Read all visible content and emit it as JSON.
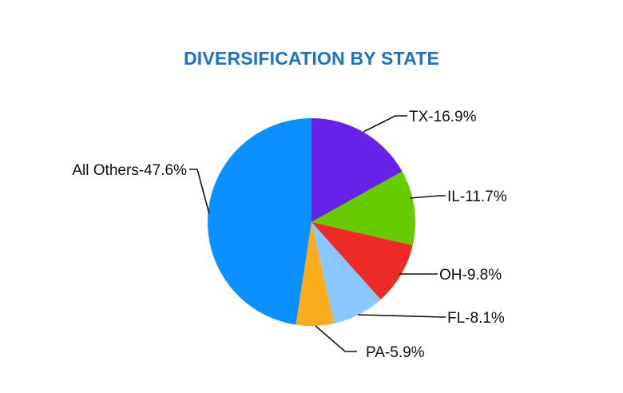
{
  "chart_data": {
    "type": "pie",
    "title": "DIVERSIFICATION BY STATE",
    "categories": [
      "TX",
      "IL",
      "OH",
      "FL",
      "PA",
      "All Others"
    ],
    "values": [
      16.9,
      11.7,
      9.8,
      8.1,
      5.9,
      47.6
    ],
    "labels": [
      "TX-16.9%",
      "IL-11.7%",
      "OH-9.8%",
      "FL-8.1%",
      "PA-5.9%",
      "All Others-47.6%"
    ],
    "colors": [
      "#6622e8",
      "#66cc00",
      "#ee2a26",
      "#88c8ff",
      "#faac1c",
      "#0a91ff"
    ],
    "start_angle": "12 o'clock",
    "direction": "clockwise",
    "legend": "none (leader-line labels)"
  },
  "title": "DIVERSIFICATION BY STATE",
  "title_color": "#1a73c9"
}
